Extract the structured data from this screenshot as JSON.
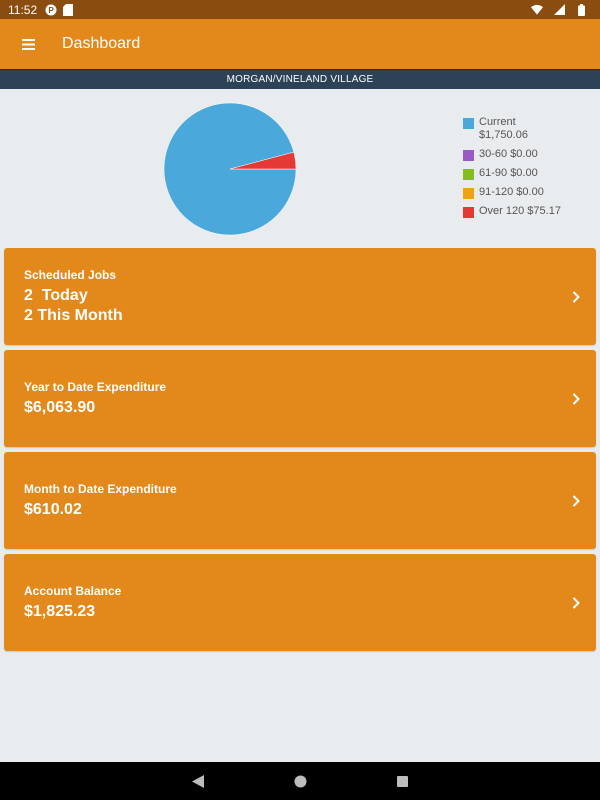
{
  "status_bar": {
    "time": "11:52",
    "icons": [
      "notification-p-icon",
      "sd-card-icon",
      "wifi-icon",
      "signal-icon",
      "battery-icon"
    ]
  },
  "app_bar": {
    "title": "Dashboard",
    "menu_icon": "hamburger-menu-icon"
  },
  "site_name": "MORGAN/VINELAND VILLAGE",
  "chart_data": {
    "type": "pie",
    "legend_position": "right",
    "slices": [
      {
        "label": "Current",
        "value_text": "$1,750.06",
        "value": 1750.06,
        "color": "#4aa8db"
      },
      {
        "label": "30-60",
        "value_text": "$0.00",
        "value": 0,
        "color": "#9b59c6"
      },
      {
        "label": "61-90",
        "value_text": "$0.00",
        "value": 0,
        "color": "#85bd1b"
      },
      {
        "label": "91-120",
        "value_text": "$0.00",
        "value": 0,
        "color": "#f0a30a"
      },
      {
        "label": "Over 120",
        "value_text": "$75.17",
        "value": 75.17,
        "color": "#e53935"
      }
    ]
  },
  "cards": [
    {
      "label": "Scheduled Jobs",
      "values": [
        "2  Today",
        "2 This Month"
      ]
    },
    {
      "label": "Year to Date Expenditure",
      "values": [
        "$6,063.90"
      ]
    },
    {
      "label": "Month to Date Expenditure",
      "values": [
        "$610.02"
      ]
    },
    {
      "label": "Account Balance",
      "values": [
        "$1,825.23"
      ]
    }
  ],
  "colors": {
    "accent": "#e3891c",
    "status_bar": "#8a4d0f",
    "site_bar": "#2c4256",
    "background": "#e9ecee"
  }
}
